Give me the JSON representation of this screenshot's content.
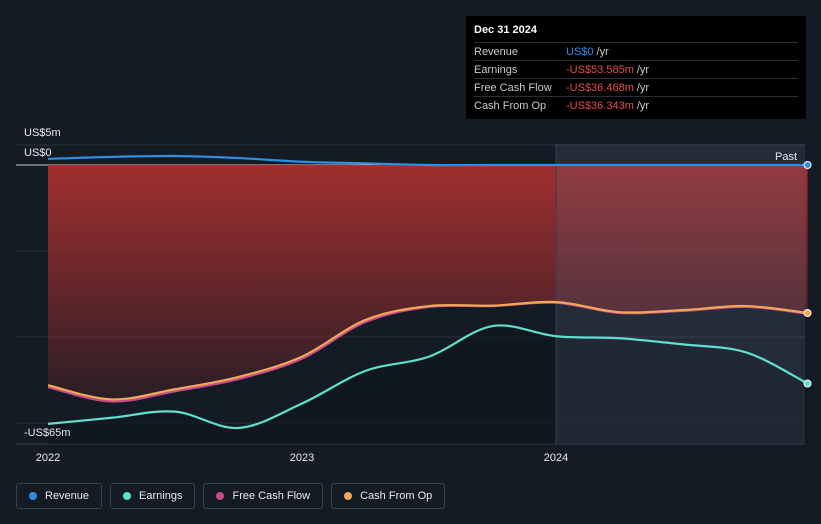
{
  "tooltip": {
    "date": "Dec 31 2024",
    "rows": [
      {
        "label": "Revenue",
        "value": "US$0",
        "unit": "/yr",
        "color": "#2f8ee3"
      },
      {
        "label": "Earnings",
        "value": "-US$53.585m",
        "unit": "/yr",
        "color": "#e84b4b"
      },
      {
        "label": "Free Cash Flow",
        "value": "-US$36.468m",
        "unit": "/yr",
        "color": "#e84b4b"
      },
      {
        "label": "Cash From Op",
        "value": "-US$36.343m",
        "unit": "/yr",
        "color": "#e84b4b"
      }
    ]
  },
  "past_label": "Past",
  "legend": [
    {
      "label": "Revenue",
      "color": "#2f8ee3"
    },
    {
      "label": "Earnings",
      "color": "#5fe0cf"
    },
    {
      "label": "Free Cash Flow",
      "color": "#c84a8a"
    },
    {
      "label": "Cash From Op",
      "color": "#f0a857"
    }
  ],
  "chart_data": {
    "type": "line",
    "y_tick_labels": [
      {
        "label": "US$5m",
        "value": 5
      },
      {
        "label": "US$0",
        "value": 0
      },
      {
        "label": "-US$65m",
        "value": -65
      }
    ],
    "x_tick_labels": [
      {
        "label": "2022",
        "value": 2022.0
      },
      {
        "label": "2023",
        "value": 2023.0
      },
      {
        "label": "2024",
        "value": 2024.0
      }
    ],
    "xlim": [
      2021.9,
      2024.98
    ],
    "ylim": [
      -65.5,
      5
    ],
    "series": [
      {
        "name": "Revenue",
        "color": "#2f8ee3",
        "x": [
          2022.0,
          2022.25,
          2022.5,
          2022.75,
          2023.0,
          2023.25,
          2023.5,
          2023.75,
          2024.0,
          2024.25,
          2024.5,
          2024.75,
          2024.99
        ],
        "y": [
          1.5,
          2.0,
          2.2,
          1.7,
          0.8,
          0.4,
          0.0,
          0.0,
          0.0,
          0.0,
          0.0,
          0.0,
          0.0
        ]
      },
      {
        "name": "Earnings",
        "color": "#5fe0cf",
        "x": [
          2022.0,
          2022.25,
          2022.5,
          2022.75,
          2023.0,
          2023.25,
          2023.5,
          2023.75,
          2024.0,
          2024.25,
          2024.5,
          2024.75,
          2024.99
        ],
        "y": [
          -63.5,
          -62.0,
          -60.5,
          -64.5,
          -58.5,
          -50.5,
          -47.0,
          -39.5,
          -42.0,
          -42.5,
          -44.0,
          -46.0,
          -53.6
        ]
      },
      {
        "name": "Free Cash Flow",
        "color": "#c84a8a",
        "x": [
          2022.0,
          2022.25,
          2022.5,
          2022.75,
          2023.0,
          2023.25,
          2023.5,
          2023.75,
          2024.0,
          2024.25,
          2024.5,
          2024.75,
          2024.99
        ],
        "y": [
          -54.5,
          -58.0,
          -55.5,
          -52.5,
          -47.5,
          -38.5,
          -34.8,
          -34.6,
          -33.8,
          -36.3,
          -35.8,
          -34.8,
          -36.5
        ]
      },
      {
        "name": "Cash From Op",
        "color": "#f0a857",
        "x": [
          2022.0,
          2022.25,
          2022.5,
          2022.75,
          2023.0,
          2023.25,
          2023.5,
          2023.75,
          2024.0,
          2024.25,
          2024.5,
          2024.75,
          2024.99
        ],
        "y": [
          -54.0,
          -57.5,
          -55.0,
          -52.0,
          -47.0,
          -38.0,
          -34.6,
          -34.5,
          -33.6,
          -36.1,
          -35.6,
          -34.6,
          -36.3
        ]
      }
    ],
    "legend_position": "bottom"
  }
}
